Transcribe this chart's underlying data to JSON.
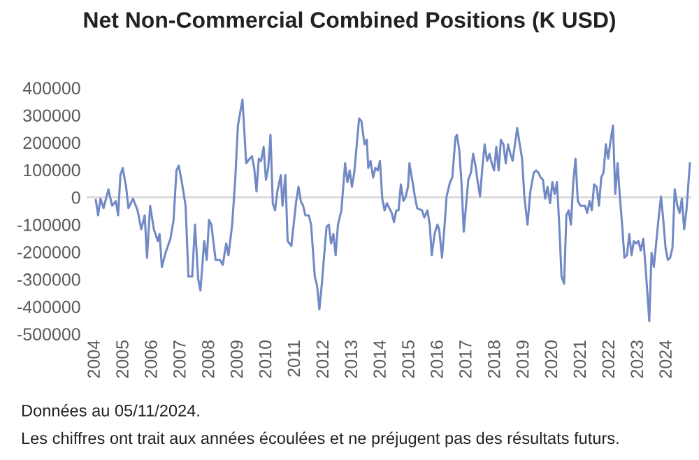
{
  "chart_data": {
    "type": "line",
    "title": "Net Non-Commercial Combined Positions (K USD)",
    "annotations": [
      "Données au 05/11/2024.",
      "Les chiffres ont trait aux années écoulées et ne préjugent pas des résultats futurs."
    ],
    "x": [
      2004.02,
      2004.1,
      2004.18,
      2004.29,
      2004.46,
      2004.59,
      2004.72,
      2004.8,
      2004.88,
      2004.96,
      2005.08,
      2005.16,
      2005.32,
      2005.48,
      2005.61,
      2005.73,
      2005.81,
      2005.92,
      2006.05,
      2006.19,
      2006.25,
      2006.33,
      2006.46,
      2006.63,
      2006.74,
      2006.84,
      2006.92,
      2007.03,
      2007.16,
      2007.26,
      2007.39,
      2007.49,
      2007.6,
      2007.68,
      2007.81,
      2007.9,
      2007.98,
      2008.06,
      2008.21,
      2008.36,
      2008.46,
      2008.58,
      2008.66,
      2008.79,
      2008.9,
      2008.99,
      2009.15,
      2009.28,
      2009.4,
      2009.48,
      2009.56,
      2009.64,
      2009.72,
      2009.8,
      2009.89,
      2009.97,
      2010.05,
      2010.13,
      2010.21,
      2010.29,
      2010.37,
      2010.49,
      2010.55,
      2010.65,
      2010.73,
      2010.86,
      2010.94,
      2011.03,
      2011.11,
      2011.19,
      2011.27,
      2011.35,
      2011.47,
      2011.55,
      2011.68,
      2011.76,
      2011.84,
      2011.92,
      2012.0,
      2012.09,
      2012.17,
      2012.25,
      2012.33,
      2012.41,
      2012.49,
      2012.61,
      2012.74,
      2012.82,
      2012.9,
      2012.98,
      2013.06,
      2013.23,
      2013.31,
      2013.42,
      2013.5,
      2013.55,
      2013.63,
      2013.72,
      2013.8,
      2013.88,
      2013.96,
      2014.04,
      2014.12,
      2014.2,
      2014.37,
      2014.45,
      2014.53,
      2014.61,
      2014.69,
      2014.78,
      2014.86,
      2014.94,
      2014.99,
      2015.1,
      2015.18,
      2015.26,
      2015.43,
      2015.51,
      2015.62,
      2015.7,
      2015.77,
      2015.87,
      2015.97,
      2016.03,
      2016.13,
      2016.21,
      2016.29,
      2016.41,
      2016.49,
      2016.6,
      2016.65,
      2016.73,
      2016.81,
      2016.89,
      2016.97,
      2017.05,
      2017.14,
      2017.22,
      2017.3,
      2017.38,
      2017.46,
      2017.54,
      2017.62,
      2017.71,
      2017.79,
      2017.87,
      2017.95,
      2018.03,
      2018.11,
      2018.19,
      2018.28,
      2018.36,
      2018.44,
      2018.52,
      2018.6,
      2018.68,
      2018.76,
      2018.85,
      2018.93,
      2019.01,
      2019.12,
      2019.22,
      2019.34,
      2019.42,
      2019.5,
      2019.58,
      2019.66,
      2019.74,
      2019.82,
      2019.91,
      2019.99,
      2020.07,
      2020.15,
      2020.23,
      2020.31,
      2020.4,
      2020.48,
      2020.56,
      2020.64,
      2020.72,
      2020.8,
      2020.88,
      2020.97,
      2021.05,
      2021.13,
      2021.21,
      2021.29,
      2021.37,
      2021.45,
      2021.54,
      2021.62,
      2021.7,
      2021.78,
      2021.86,
      2021.94,
      2022.03,
      2022.11,
      2022.19,
      2022.27,
      2022.35,
      2022.43,
      2022.51,
      2022.6,
      2022.68,
      2022.76,
      2022.84,
      2022.92,
      2023.0,
      2023.08,
      2023.17,
      2023.25,
      2023.33,
      2023.38,
      2023.46,
      2023.54,
      2023.62,
      2023.7,
      2023.79,
      2023.87,
      2023.95,
      2024.03,
      2024.11,
      2024.19,
      2024.27,
      2024.36,
      2024.44,
      2024.52,
      2024.6,
      2024.68,
      2024.8
    ],
    "series": [
      {
        "color": "#7189c4",
        "values": [
          -10000,
          -66000,
          -5000,
          -40000,
          29000,
          -31000,
          -14000,
          -66000,
          81000,
          107000,
          38000,
          -40000,
          -5000,
          -48000,
          -117000,
          -66000,
          -221000,
          -31000,
          -117000,
          -160000,
          -134000,
          -255000,
          -203000,
          -152000,
          -83000,
          98000,
          116000,
          55000,
          -31000,
          -290000,
          -290000,
          -100000,
          -298000,
          -341000,
          -160000,
          -229000,
          -83000,
          -100000,
          -229000,
          -229000,
          -247000,
          -169000,
          -212000,
          -100000,
          72000,
          262000,
          357000,
          124000,
          141000,
          150000,
          107000,
          21000,
          141000,
          132000,
          184000,
          64000,
          107000,
          228000,
          -22000,
          -48000,
          21000,
          81000,
          -31000,
          81000,
          -160000,
          -178000,
          -100000,
          -14000,
          38000,
          -14000,
          -31000,
          -66000,
          -66000,
          -100000,
          -290000,
          -324000,
          -410000,
          -324000,
          -221000,
          -109000,
          -100000,
          -169000,
          -134000,
          -212000,
          -100000,
          -48000,
          124000,
          55000,
          98000,
          38000,
          90000,
          288000,
          279000,
          193000,
          210000,
          107000,
          133000,
          72000,
          107000,
          98000,
          133000,
          -5000,
          -48000,
          -22000,
          -57000,
          -91000,
          -48000,
          -48000,
          47000,
          -14000,
          3000,
          38000,
          124000,
          55000,
          3000,
          -40000,
          -48000,
          -74000,
          -48000,
          -100000,
          -212000,
          -134000,
          -100000,
          -117000,
          -221000,
          -117000,
          3000,
          55000,
          72000,
          219000,
          228000,
          176000,
          55000,
          -126000,
          -31000,
          64000,
          90000,
          159000,
          116000,
          55000,
          3000,
          107000,
          193000,
          133000,
          159000,
          124000,
          98000,
          184000,
          98000,
          210000,
          193000,
          124000,
          193000,
          159000,
          133000,
          193000,
          253000,
          193000,
          141000,
          3000,
          -100000,
          21000,
          90000,
          98000,
          90000,
          72000,
          64000,
          -5000,
          38000,
          -22000,
          55000,
          12000,
          55000,
          -100000,
          -290000,
          -316000,
          -66000,
          -48000,
          -100000,
          55000,
          141000,
          -14000,
          -31000,
          -31000,
          -31000,
          -57000,
          -14000,
          -48000,
          47000,
          38000,
          -31000,
          72000,
          90000,
          193000,
          141000,
          210000,
          262000,
          12000,
          124000,
          3000,
          -100000,
          -221000,
          -212000,
          -134000,
          -212000,
          -160000,
          -169000,
          -160000,
          -195000,
          -152000,
          -255000,
          -376000,
          -453000,
          -203000,
          -255000,
          -169000,
          -83000,
          3000,
          -83000,
          -186000,
          -229000,
          -221000,
          -186000,
          29000,
          -31000,
          -57000,
          -5000,
          -117000,
          -48000,
          124000
        ]
      }
    ],
    "xlim": [
      2003.7,
      2024.85
    ],
    "xticks": [
      2004,
      2005,
      2006,
      2007,
      2008,
      2009,
      2010,
      2011,
      2012,
      2013,
      2014,
      2015,
      2016,
      2017,
      2018,
      2019,
      2020,
      2021,
      2022,
      2023,
      2024
    ],
    "ylim": [
      -500000,
      400000
    ],
    "yticks": [
      -500000,
      -400000,
      -300000,
      -200000,
      -100000,
      0,
      100000,
      200000,
      300000,
      400000
    ],
    "ref_lines": [
      {
        "axis": "y",
        "value": 0,
        "color": "#d9d9d9"
      }
    ],
    "grid": false,
    "legend": false
  }
}
